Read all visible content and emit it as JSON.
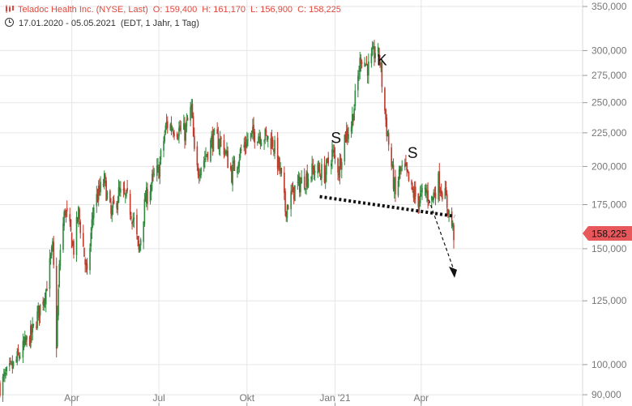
{
  "header": {
    "instrument": "Teladoc Health Inc. (NYSE, Last)",
    "open": "O: 159,400",
    "high": "H: 161,170",
    "low": "L: 156,900",
    "close": "C: 158,225",
    "range": "17.01.2020 - 05.05.2021",
    "info": "(EDT, 1 Jahr, 1 Tag)",
    "icon": "candlestick-icon",
    "clock_icon": "clock-icon"
  },
  "colors": {
    "up": "#2e8b3e",
    "down": "#c0392b",
    "grid": "#e6e6e6",
    "axis_text": "#777777",
    "price_tag": "#e8585a",
    "header_red": "#e0473c"
  },
  "chart_data": {
    "type": "candlestick",
    "title": "Teladoc Health Inc. (NYSE, Last)",
    "y_scale": "log",
    "ylim": [
      88,
      355
    ],
    "y_ticks": [
      {
        "value": 350,
        "label": "350,000"
      },
      {
        "value": 300,
        "label": "300,000"
      },
      {
        "value": 275,
        "label": "275,000"
      },
      {
        "value": 250,
        "label": "250,000"
      },
      {
        "value": 225,
        "label": "225,000"
      },
      {
        "value": 200,
        "label": "200,000"
      },
      {
        "value": 175,
        "label": "175,000"
      },
      {
        "value": 150,
        "label": "150,000"
      },
      {
        "value": 125,
        "label": "125,000"
      },
      {
        "value": 100,
        "label": "100,000"
      },
      {
        "value": 90,
        "label": "90,000"
      }
    ],
    "x_range": [
      "2020-01-17",
      "2021-05-05"
    ],
    "x_ticks": [
      {
        "date": "2020-04-01",
        "label": "Apr"
      },
      {
        "date": "2020-07-01",
        "label": "Jul"
      },
      {
        "date": "2020-10-01",
        "label": "Okt"
      },
      {
        "date": "2021-01-01",
        "label": "Jan '21"
      },
      {
        "date": "2021-04-01",
        "label": "Apr"
      }
    ],
    "last_price": {
      "value": 158.225,
      "label": "158,225"
    },
    "path": [
      [
        "2020-01-17",
        93
      ],
      [
        "2020-02-01",
        100
      ],
      [
        "2020-02-20",
        112
      ],
      [
        "2020-03-05",
        130
      ],
      [
        "2020-03-12",
        150
      ],
      [
        "2020-03-16",
        108
      ],
      [
        "2020-03-20",
        150
      ],
      [
        "2020-03-25",
        172
      ],
      [
        "2020-04-03",
        150
      ],
      [
        "2020-04-08",
        170
      ],
      [
        "2020-04-17",
        135
      ],
      [
        "2020-04-24",
        175
      ],
      [
        "2020-05-05",
        190
      ],
      [
        "2020-05-12",
        168
      ],
      [
        "2020-05-20",
        182
      ],
      [
        "2020-05-29",
        178
      ],
      [
        "2020-06-05",
        165
      ],
      [
        "2020-06-10",
        148
      ],
      [
        "2020-06-17",
        178
      ],
      [
        "2020-06-24",
        190
      ],
      [
        "2020-07-01",
        198
      ],
      [
        "2020-07-09",
        232
      ],
      [
        "2020-07-20",
        228
      ],
      [
        "2020-07-28",
        225
      ],
      [
        "2020-08-04",
        245
      ],
      [
        "2020-08-08",
        195
      ],
      [
        "2020-08-17",
        205
      ],
      [
        "2020-08-26",
        220
      ],
      [
        "2020-09-05",
        218
      ],
      [
        "2020-09-15",
        195
      ],
      [
        "2020-09-24",
        210
      ],
      [
        "2020-10-02",
        220
      ],
      [
        "2020-10-10",
        225
      ],
      [
        "2020-10-20",
        222
      ],
      [
        "2020-10-28",
        218
      ],
      [
        "2020-11-05",
        195
      ],
      [
        "2020-11-10",
        172
      ],
      [
        "2020-11-20",
        185
      ],
      [
        "2020-12-01",
        192
      ],
      [
        "2020-12-11",
        198
      ],
      [
        "2020-12-21",
        195
      ],
      [
        "2020-12-29",
        210
      ],
      [
        "2021-01-05",
        198
      ],
      [
        "2021-01-11",
        222
      ],
      [
        "2021-01-18",
        232
      ],
      [
        "2021-01-23",
        258
      ],
      [
        "2021-01-28",
        295
      ],
      [
        "2021-02-05",
        282
      ],
      [
        "2021-02-12",
        300
      ],
      [
        "2021-02-17",
        290
      ],
      [
        "2021-02-20",
        258
      ],
      [
        "2021-02-24",
        228
      ],
      [
        "2021-03-01",
        200
      ],
      [
        "2021-03-05",
        180
      ],
      [
        "2021-03-09",
        195
      ],
      [
        "2021-03-15",
        198
      ],
      [
        "2021-03-22",
        183
      ],
      [
        "2021-03-29",
        178
      ],
      [
        "2021-04-05",
        183
      ],
      [
        "2021-04-12",
        178
      ],
      [
        "2021-04-19",
        190
      ],
      [
        "2021-04-26",
        180
      ],
      [
        "2021-04-30",
        170
      ],
      [
        "2021-05-05",
        158.2
      ]
    ],
    "annotations": [
      {
        "text": "S",
        "date": "2021-01-02",
        "value": 217
      },
      {
        "text": "K",
        "date": "2021-02-19",
        "value": 285
      },
      {
        "text": "S",
        "date": "2021-03-23",
        "value": 206
      }
    ],
    "neckline": {
      "from": [
        "2020-12-16",
        180
      ],
      "to": [
        "2021-05-06",
        168
      ]
    },
    "projection": {
      "from": [
        "2021-04-09",
        178
      ],
      "to": [
        "2021-05-05",
        137
      ]
    }
  }
}
